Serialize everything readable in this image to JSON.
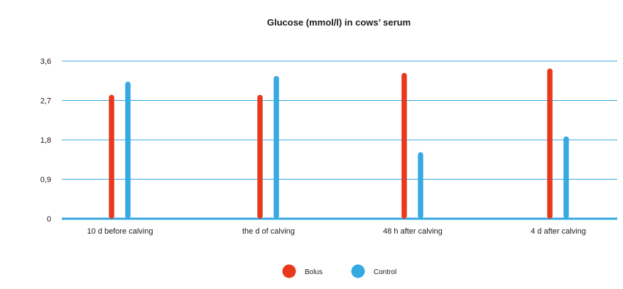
{
  "chart_data": {
    "type": "bar",
    "title": "Glucose (mmol/l) in cows’ serum",
    "categories": [
      "10 d before calving",
      "the d of calving",
      "48 h after calving",
      "4 d after calving"
    ],
    "series": [
      {
        "name": "Bolus",
        "color": "#e8391d",
        "values": [
          2.83,
          2.83,
          3.33,
          3.43
        ]
      },
      {
        "name": "Control",
        "color": "#36a9e1",
        "values": [
          3.13,
          3.26,
          1.52,
          1.88
        ]
      }
    ],
    "yticks": [
      "0",
      "0,9",
      "1,8",
      "2,7",
      "3,6"
    ],
    "ylim": [
      0,
      3.6
    ],
    "grid": true,
    "grid_color": "#36a9e1",
    "legend_position": "bottom-center"
  }
}
